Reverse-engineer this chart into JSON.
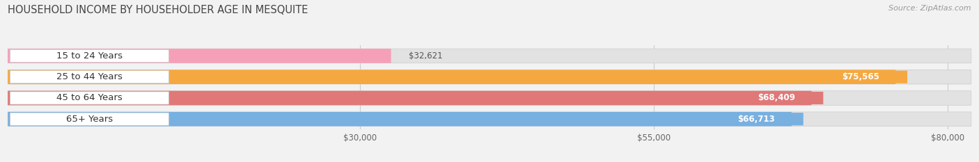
{
  "title": "HOUSEHOLD INCOME BY HOUSEHOLDER AGE IN MESQUITE",
  "source": "Source: ZipAtlas.com",
  "categories": [
    "15 to 24 Years",
    "25 to 44 Years",
    "45 to 64 Years",
    "65+ Years"
  ],
  "values": [
    32621,
    75565,
    68409,
    66713
  ],
  "labels": [
    "$32,621",
    "$75,565",
    "$68,409",
    "$66,713"
  ],
  "bar_colors": [
    "#f5a0b8",
    "#f5a840",
    "#e07878",
    "#78b0e0"
  ],
  "bg_color": "#f2f2f2",
  "bar_bg_color": "#e2e2e2",
  "label_pill_color": [
    "#f5a0b8",
    "#f5a840",
    "#e07878",
    "#78b0e0"
  ],
  "xlim": [
    0,
    82000
  ],
  "xticks": [
    30000,
    55000,
    80000
  ],
  "xticklabels": [
    "$30,000",
    "$55,000",
    "$80,000"
  ],
  "title_fontsize": 10.5,
  "source_fontsize": 8,
  "label_fontsize": 8.5,
  "category_fontsize": 9.5,
  "tick_fontsize": 8.5
}
